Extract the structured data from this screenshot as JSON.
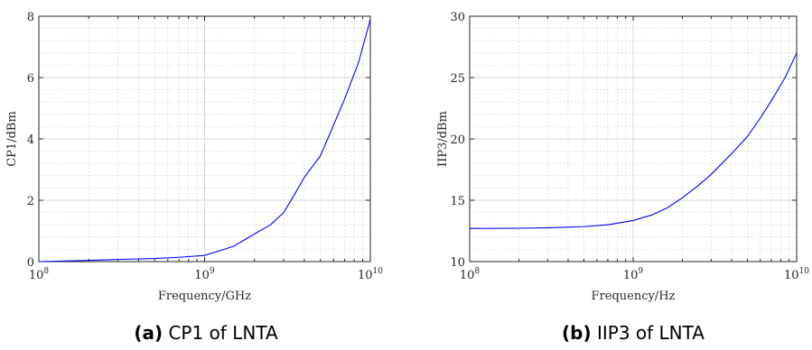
{
  "chart_data": [
    {
      "type": "line",
      "caption": {
        "letter": "(a)",
        "text": "CP1 of LNTA"
      },
      "xlabel": "Frequency/GHz",
      "ylabel": "CP1/dBm",
      "xscale": "log",
      "xlim": [
        100000000,
        10000000000
      ],
      "ylim": [
        0,
        8
      ],
      "xticks": [
        {
          "base": "10",
          "exp": "8",
          "value": 100000000
        },
        {
          "base": "10",
          "exp": "9",
          "value": 1000000000
        },
        {
          "base": "10",
          "exp": "10",
          "value": 10000000000
        }
      ],
      "yticks": [
        0,
        2,
        4,
        6,
        8
      ],
      "grid": true,
      "color": "#0000ff",
      "x": [
        100000000,
        200000000,
        300000000,
        500000000,
        700000000,
        1000000000,
        1500000000,
        2000000000,
        2500000000,
        3000000000,
        3500000000,
        4000000000,
        5000000000,
        6000000000,
        7000000000,
        8500000000,
        10000000000
      ],
      "y": [
        0.0,
        0.04,
        0.07,
        0.1,
        0.14,
        0.2,
        0.5,
        0.9,
        1.2,
        1.6,
        2.2,
        2.75,
        3.45,
        4.45,
        5.3,
        6.5,
        7.9
      ]
    },
    {
      "type": "line",
      "caption": {
        "letter": "(b)",
        "text": "IIP3 of LNTA"
      },
      "xlabel": "Frequency/Hz",
      "ylabel": "IIP3/dBm",
      "xscale": "log",
      "xlim": [
        100000000,
        10000000000
      ],
      "ylim": [
        10,
        30
      ],
      "xticks": [
        {
          "base": "10",
          "exp": "8",
          "value": 100000000
        },
        {
          "base": "10",
          "exp": "9",
          "value": 1000000000
        },
        {
          "base": "10",
          "exp": "10",
          "value": 10000000000
        }
      ],
      "yticks": [
        10,
        15,
        20,
        25,
        30
      ],
      "grid": true,
      "color": "#0000ff",
      "x": [
        100000000,
        200000000,
        300000000,
        500000000,
        700000000,
        1000000000,
        1300000000,
        1600000000,
        2000000000,
        2500000000,
        3000000000,
        4000000000,
        5000000000,
        6000000000,
        7000000000,
        8500000000,
        10000000000
      ],
      "y": [
        12.7,
        12.72,
        12.75,
        12.85,
        13.0,
        13.35,
        13.8,
        14.35,
        15.2,
        16.2,
        17.1,
        18.8,
        20.2,
        21.7,
        23.1,
        25.0,
        27.0
      ]
    }
  ]
}
